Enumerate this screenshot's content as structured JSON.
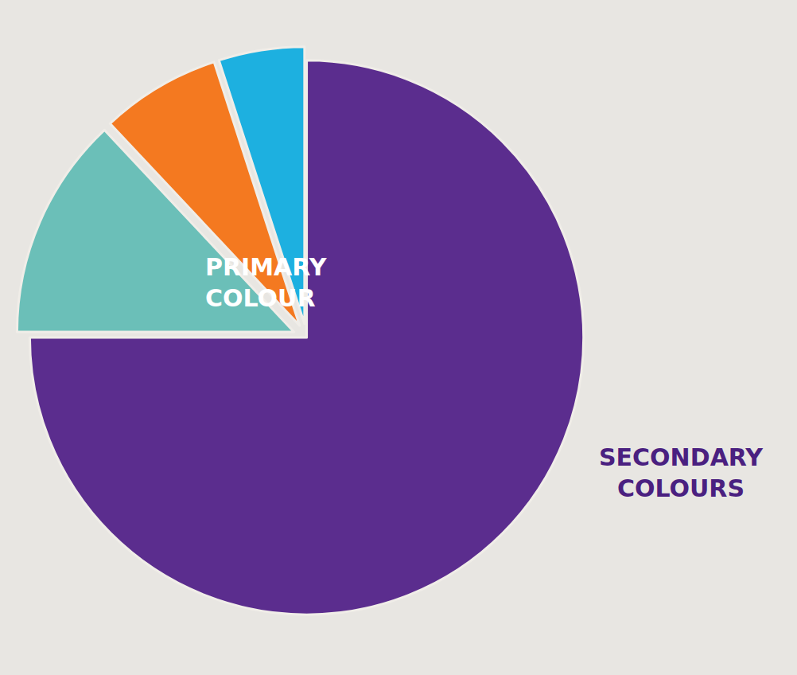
{
  "chart_data": {
    "type": "pie",
    "values": [
      75,
      13,
      7,
      5
    ],
    "colors": [
      "#5b2d8e",
      "#6bbfb8",
      "#f47920",
      "#1db0e0"
    ],
    "annotations": [
      {
        "text": "PRIMARY\nCOLOUR",
        "color": "#ffffff"
      },
      {
        "text": "SECONDARY\nCOLOURS",
        "color": "#4a2080"
      }
    ]
  }
}
